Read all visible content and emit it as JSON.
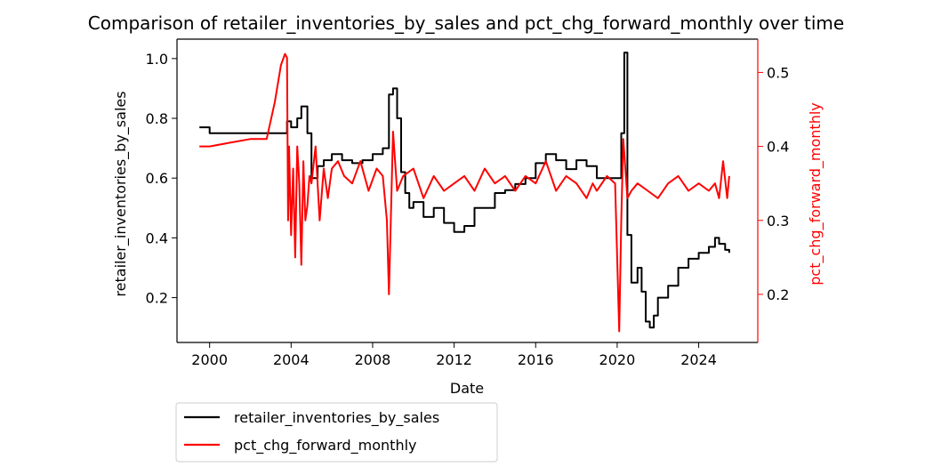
{
  "chart_data": {
    "type": "line",
    "title": "Comparison of retailer_inventories_by_sales and pct_chg_forward_monthly over time",
    "xlabel": "Date",
    "ylabel_left": "retailer_inventories_by_sales",
    "ylabel_right": "pct_chg_forward_monthly",
    "xlim": [
      1998.4,
      2026.9
    ],
    "ylim_left": [
      0.05,
      1.065
    ],
    "ylim_right": [
      0.135,
      0.545
    ],
    "x_ticks": [
      2000,
      2004,
      2008,
      2012,
      2016,
      2020,
      2024
    ],
    "x_tick_labels": [
      "2000",
      "2004",
      "2008",
      "2012",
      "2016",
      "2020",
      "2024"
    ],
    "y_ticks_left": [
      0.2,
      0.4,
      0.6,
      0.8,
      1.0
    ],
    "y_tick_labels_left": [
      "0.2",
      "0.4",
      "0.6",
      "0.8",
      "1.0"
    ],
    "y_ticks_right": [
      0.2,
      0.3,
      0.4,
      0.5
    ],
    "y_tick_labels_right": [
      "0.2",
      "0.3",
      "0.4",
      "0.5"
    ],
    "grid": false,
    "legend_position": "below-left",
    "colors": {
      "left_series": "#000000",
      "right_series": "#ff0000"
    },
    "series": [
      {
        "name": "retailer_inventories_by_sales",
        "axis": "left",
        "color": "#000000",
        "x": [
          1999.5,
          2000.0,
          2003.6,
          2003.8,
          2004.0,
          2004.3,
          2004.5,
          2004.8,
          2005.0,
          2005.3,
          2005.6,
          2006.0,
          2006.5,
          2007.0,
          2007.5,
          2008.0,
          2008.5,
          2008.8,
          2009.0,
          2009.2,
          2009.4,
          2009.6,
          2009.8,
          2010.0,
          2010.5,
          2011.0,
          2011.5,
          2012.0,
          2012.5,
          2013.0,
          2013.5,
          2014.0,
          2014.5,
          2015.0,
          2015.5,
          2016.0,
          2016.5,
          2017.0,
          2017.5,
          2018.0,
          2018.5,
          2019.0,
          2019.5,
          2020.0,
          2020.2,
          2020.35,
          2020.5,
          2020.7,
          2021.0,
          2021.2,
          2021.4,
          2021.6,
          2021.8,
          2022.0,
          2022.5,
          2023.0,
          2023.5,
          2024.0,
          2024.5,
          2024.8,
          2025.0,
          2025.3,
          2025.5
        ],
        "y": [
          0.77,
          0.75,
          0.75,
          0.79,
          0.77,
          0.8,
          0.84,
          0.75,
          0.6,
          0.64,
          0.66,
          0.68,
          0.66,
          0.65,
          0.66,
          0.68,
          0.7,
          0.88,
          0.9,
          0.8,
          0.62,
          0.55,
          0.5,
          0.52,
          0.47,
          0.5,
          0.45,
          0.42,
          0.44,
          0.5,
          0.5,
          0.55,
          0.56,
          0.58,
          0.6,
          0.65,
          0.68,
          0.66,
          0.63,
          0.66,
          0.64,
          0.6,
          0.6,
          0.6,
          0.75,
          1.02,
          0.41,
          0.25,
          0.3,
          0.22,
          0.12,
          0.1,
          0.14,
          0.2,
          0.24,
          0.3,
          0.33,
          0.35,
          0.37,
          0.4,
          0.38,
          0.36,
          0.35
        ]
      },
      {
        "name": "pct_chg_forward_monthly",
        "axis": "right",
        "color": "#ff0000",
        "x": [
          1999.5,
          2000.0,
          2001.0,
          2002.0,
          2002.8,
          2003.2,
          2003.5,
          2003.7,
          2003.8,
          2003.85,
          2003.9,
          2004.0,
          2004.1,
          2004.2,
          2004.3,
          2004.4,
          2004.5,
          2004.6,
          2004.7,
          2004.8,
          2004.9,
          2005.0,
          2005.2,
          2005.4,
          2005.6,
          2005.8,
          2006.0,
          2006.3,
          2006.6,
          2007.0,
          2007.4,
          2007.8,
          2008.2,
          2008.5,
          2008.7,
          2008.8,
          2009.0,
          2009.2,
          2009.5,
          2010.0,
          2010.5,
          2011.0,
          2011.5,
          2012.0,
          2012.5,
          2013.0,
          2013.5,
          2014.0,
          2014.5,
          2015.0,
          2015.5,
          2016.0,
          2016.5,
          2017.0,
          2017.5,
          2018.0,
          2018.5,
          2018.8,
          2019.0,
          2019.5,
          2019.9,
          2020.1,
          2020.2,
          2020.3,
          2020.5,
          2020.7,
          2021.0,
          2021.5,
          2022.0,
          2022.5,
          2023.0,
          2023.5,
          2024.0,
          2024.5,
          2024.8,
          2025.0,
          2025.2,
          2025.4,
          2025.5
        ],
        "y": [
          0.4,
          0.4,
          0.405,
          0.41,
          0.41,
          0.46,
          0.51,
          0.525,
          0.52,
          0.3,
          0.4,
          0.28,
          0.37,
          0.25,
          0.4,
          0.35,
          0.24,
          0.38,
          0.3,
          0.32,
          0.36,
          0.35,
          0.4,
          0.3,
          0.37,
          0.33,
          0.37,
          0.38,
          0.36,
          0.35,
          0.38,
          0.34,
          0.37,
          0.36,
          0.3,
          0.2,
          0.42,
          0.34,
          0.36,
          0.37,
          0.33,
          0.36,
          0.34,
          0.35,
          0.36,
          0.34,
          0.37,
          0.35,
          0.36,
          0.34,
          0.36,
          0.35,
          0.38,
          0.34,
          0.36,
          0.35,
          0.33,
          0.35,
          0.34,
          0.36,
          0.35,
          0.15,
          0.3,
          0.41,
          0.33,
          0.34,
          0.35,
          0.34,
          0.33,
          0.35,
          0.36,
          0.34,
          0.35,
          0.34,
          0.35,
          0.33,
          0.38,
          0.33,
          0.36
        ]
      }
    ]
  }
}
